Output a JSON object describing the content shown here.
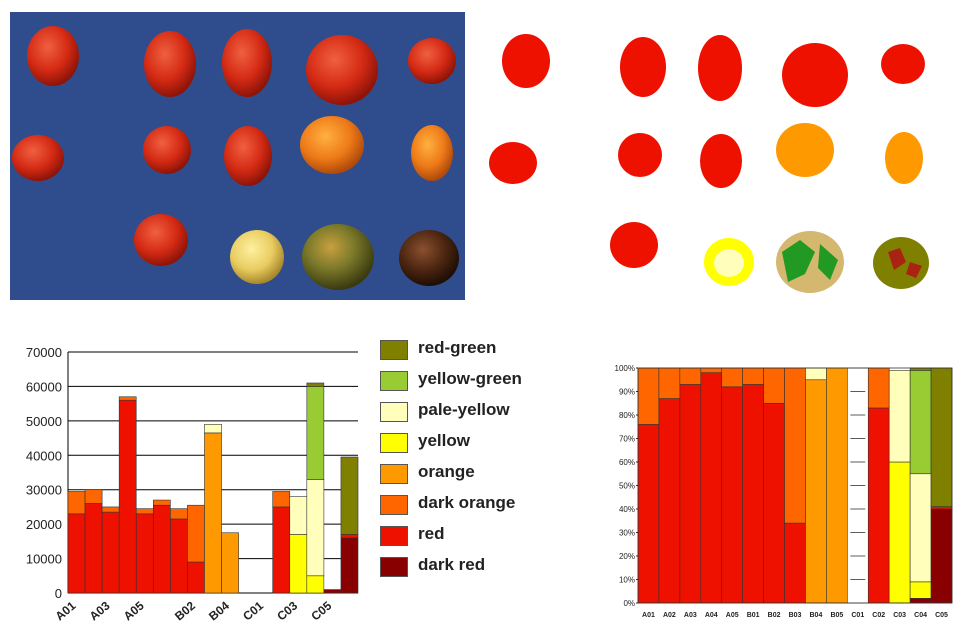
{
  "colors": {
    "photo_background": "#2f4d8c",
    "red-green": "#808000",
    "yellow-green": "#99cc33",
    "pale-yellow": "#ffffbb",
    "yellow": "#ffff00",
    "orange": "#ff9900",
    "dark orange": "#ff6600",
    "red": "#ee1100",
    "dark red": "#880000",
    "empty": "#ffffff"
  },
  "legend": [
    "red-green",
    "yellow-green",
    "pale-yellow",
    "yellow",
    "orange",
    "dark orange",
    "red",
    "dark red"
  ],
  "photo": {
    "description_icon": "tomato-fruits-on-blue-background"
  },
  "chart_data": [
    {
      "type": "bar",
      "stacked": true,
      "ylim": [
        0,
        70000
      ],
      "yticks": [
        "0",
        "10000",
        "20000",
        "30000",
        "40000",
        "50000",
        "60000",
        "70000"
      ],
      "categories": [
        "A01",
        "A02",
        "A03",
        "A04",
        "A05",
        "A06",
        "B01",
        "B02",
        "B03",
        "B04",
        "B05",
        "C01",
        "C02",
        "C03",
        "C04",
        "C05",
        "C06"
      ],
      "xtick_labels_shown": [
        "A01",
        "A03",
        "A05",
        "B02",
        "B04",
        "C01",
        "C03",
        "C05"
      ],
      "series": [
        {
          "name": "dark red",
          "values": [
            0,
            0,
            0,
            0,
            0,
            0,
            0,
            0,
            0,
            0,
            0,
            0,
            0,
            0,
            0,
            1000,
            16000
          ]
        },
        {
          "name": "red",
          "values": [
            23000,
            26000,
            23500,
            56000,
            23000,
            25500,
            21500,
            9000,
            0,
            0,
            0,
            0,
            25000,
            0,
            0,
            0,
            1000
          ]
        },
        {
          "name": "dark orange",
          "values": [
            6500,
            4000,
            1500,
            1000,
            1500,
            1500,
            3000,
            16500,
            0,
            0,
            0,
            0,
            4500,
            0,
            0,
            0,
            0
          ]
        },
        {
          "name": "orange",
          "values": [
            0,
            0,
            0,
            0,
            0,
            0,
            0,
            0,
            46500,
            17500,
            0,
            0,
            0,
            0,
            0,
            0,
            0
          ]
        },
        {
          "name": "yellow",
          "values": [
            0,
            0,
            0,
            0,
            0,
            0,
            0,
            0,
            0,
            0,
            0,
            0,
            0,
            17000,
            5000,
            0,
            0
          ]
        },
        {
          "name": "pale-yellow",
          "values": [
            0,
            0,
            0,
            0,
            0,
            0,
            0,
            0,
            2500,
            0,
            0,
            0,
            0,
            11000,
            28000,
            0,
            0
          ]
        },
        {
          "name": "yellow-green",
          "values": [
            0,
            0,
            0,
            0,
            0,
            0,
            0,
            0,
            0,
            0,
            0,
            0,
            0,
            0,
            27000,
            0,
            0
          ]
        },
        {
          "name": "red-green",
          "values": [
            0,
            0,
            0,
            0,
            0,
            0,
            0,
            0,
            0,
            0,
            0,
            0,
            0,
            0,
            1000,
            0,
            22500
          ]
        }
      ]
    },
    {
      "type": "bar",
      "stacked": true,
      "percent": true,
      "ylim": [
        0,
        100
      ],
      "yticks": [
        "0%",
        "10%",
        "20%",
        "30%",
        "40%",
        "50%",
        "60%",
        "70%",
        "80%",
        "90%",
        "100%"
      ],
      "categories": [
        "A01",
        "A02",
        "A03",
        "A04",
        "A05",
        "B01",
        "B02",
        "B03",
        "B04",
        "B05",
        "C01",
        "C02",
        "C03",
        "C04",
        "C05"
      ],
      "series": [
        {
          "name": "dark red",
          "values": [
            0,
            0,
            0,
            0,
            0,
            0,
            0,
            0,
            0,
            0,
            0,
            0,
            0,
            2,
            40
          ]
        },
        {
          "name": "red",
          "values": [
            76,
            87,
            93,
            98,
            92,
            93,
            85,
            34,
            0,
            0,
            0,
            83,
            0,
            0,
            1
          ]
        },
        {
          "name": "dark orange",
          "values": [
            24,
            13,
            7,
            2,
            8,
            7,
            15,
            66,
            0,
            0,
            0,
            17,
            0,
            0,
            0
          ]
        },
        {
          "name": "orange",
          "values": [
            0,
            0,
            0,
            0,
            0,
            0,
            0,
            0,
            95,
            100,
            0,
            0,
            0,
            0,
            0
          ]
        },
        {
          "name": "yellow",
          "values": [
            0,
            0,
            0,
            0,
            0,
            0,
            0,
            0,
            0,
            0,
            0,
            0,
            60,
            7,
            0
          ]
        },
        {
          "name": "pale-yellow",
          "values": [
            0,
            0,
            0,
            0,
            0,
            0,
            0,
            0,
            5,
            0,
            0,
            0,
            39,
            46,
            0
          ]
        },
        {
          "name": "yellow-green",
          "values": [
            0,
            0,
            0,
            0,
            0,
            0,
            0,
            0,
            0,
            0,
            0,
            0,
            0,
            44,
            0
          ]
        },
        {
          "name": "red-green",
          "values": [
            0,
            0,
            0,
            0,
            0,
            0,
            0,
            0,
            0,
            0,
            0,
            0,
            0,
            1,
            59
          ]
        }
      ]
    }
  ]
}
